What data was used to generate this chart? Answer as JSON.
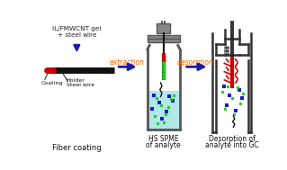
{
  "bg_color": "#ffffff",
  "panel1": {
    "label": "Fiber coating",
    "top_text_line1": "IL/FMWCNT gel",
    "top_text_line2": "+ steel wire",
    "annotations": [
      "Coating",
      "Holder",
      "Steel wire"
    ],
    "wire_color_black": "#111111",
    "wire_color_red": "#cc0000",
    "arrow_color": "#1a1aaa"
  },
  "panel2": {
    "label_line1": "HS SPME",
    "label_line2": "of analyte",
    "liquid_color": "#b0e8e8",
    "fiber_red": "#cc0000",
    "fiber_green": "#22aa22",
    "dots_blue": "#1a1acc",
    "dots_green": "#22cc22"
  },
  "panel3": {
    "label_line1": "Desorption of",
    "label_line2": "analyte into GC",
    "fiber_red": "#cc0000",
    "dots_blue": "#1a1acc",
    "dots_green": "#22cc22",
    "squiggle": "#111111"
  },
  "extraction_label": "extraction",
  "desorption_label": "desorption",
  "arrow_text_color": "#ff6600",
  "arrow_body_color": "#1a1aaa",
  "vial_color": "#555555",
  "gc_color": "#333333"
}
